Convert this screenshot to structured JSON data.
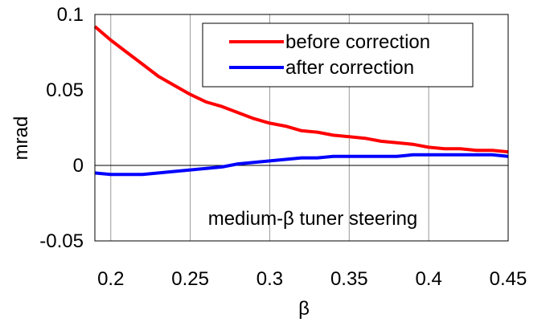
{
  "chart_data": {
    "type": "line",
    "title": "",
    "xlabel": "β",
    "ylabel": "mrad",
    "xlim": [
      0.19,
      0.45
    ],
    "ylim": [
      -0.05,
      0.1
    ],
    "x_ticks": [
      0.2,
      0.25,
      0.3,
      0.35,
      0.4,
      0.45
    ],
    "x_tick_labels": [
      "0.2",
      "0.25",
      "0.3",
      "0.35",
      "0.4",
      "0.45"
    ],
    "y_ticks": [
      -0.05,
      0,
      0.05,
      0.1
    ],
    "y_tick_labels": [
      "-0.05",
      "0",
      "0.05",
      "0.1"
    ],
    "grid": "vertical gridlines at x ticks",
    "legend_position": "top-right",
    "annotation": "medium-β tuner steering",
    "series": [
      {
        "name": "before correction",
        "color": "#ff0000",
        "x": [
          0.19,
          0.2,
          0.21,
          0.22,
          0.23,
          0.24,
          0.25,
          0.26,
          0.27,
          0.28,
          0.29,
          0.3,
          0.31,
          0.32,
          0.33,
          0.34,
          0.35,
          0.36,
          0.37,
          0.38,
          0.39,
          0.4,
          0.41,
          0.42,
          0.43,
          0.44,
          0.45
        ],
        "y": [
          0.092,
          0.083,
          0.075,
          0.067,
          0.059,
          0.053,
          0.047,
          0.042,
          0.039,
          0.035,
          0.031,
          0.028,
          0.026,
          0.023,
          0.022,
          0.02,
          0.019,
          0.018,
          0.016,
          0.015,
          0.014,
          0.012,
          0.011,
          0.011,
          0.01,
          0.01,
          0.009
        ]
      },
      {
        "name": "after correction",
        "color": "#0000ff",
        "x": [
          0.19,
          0.2,
          0.21,
          0.22,
          0.23,
          0.24,
          0.25,
          0.26,
          0.27,
          0.28,
          0.29,
          0.3,
          0.31,
          0.32,
          0.33,
          0.34,
          0.35,
          0.36,
          0.37,
          0.38,
          0.39,
          0.4,
          0.41,
          0.42,
          0.43,
          0.44,
          0.45
        ],
        "y": [
          -0.005,
          -0.006,
          -0.006,
          -0.006,
          -0.005,
          -0.004,
          -0.003,
          -0.002,
          -0.001,
          0.001,
          0.002,
          0.003,
          0.004,
          0.005,
          0.005,
          0.006,
          0.006,
          0.006,
          0.006,
          0.006,
          0.007,
          0.007,
          0.007,
          0.007,
          0.007,
          0.007,
          0.006
        ]
      }
    ]
  }
}
